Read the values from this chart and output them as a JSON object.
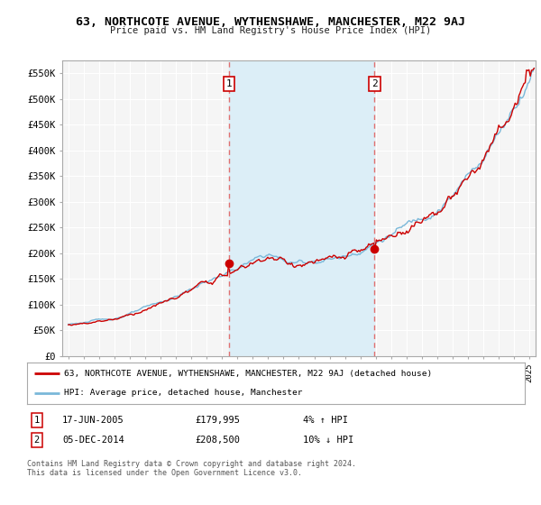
{
  "title": "63, NORTHCOTE AVENUE, WYTHENSHAWE, MANCHESTER, M22 9AJ",
  "subtitle": "Price paid vs. HM Land Registry's House Price Index (HPI)",
  "ylabel_ticks": [
    "£0",
    "£50K",
    "£100K",
    "£150K",
    "£200K",
    "£250K",
    "£300K",
    "£350K",
    "£400K",
    "£450K",
    "£500K",
    "£550K"
  ],
  "ylim": [
    0,
    575000
  ],
  "xlim_start": 1994.6,
  "xlim_end": 2025.4,
  "marker1_x": 2005.46,
  "marker1_y": 179995,
  "marker2_x": 2014.92,
  "marker2_y": 208500,
  "vline1_x": 2005.46,
  "vline2_x": 2014.92,
  "legend_line1": "63, NORTHCOTE AVENUE, WYTHENSHAWE, MANCHESTER, M22 9AJ (detached house)",
  "legend_line2": "HPI: Average price, detached house, Manchester",
  "ann1_date": "17-JUN-2005",
  "ann1_price": "£179,995",
  "ann1_hpi": "4% ↑ HPI",
  "ann2_date": "05-DEC-2014",
  "ann2_price": "£208,500",
  "ann2_hpi": "10% ↓ HPI",
  "footnote": "Contains HM Land Registry data © Crown copyright and database right 2024.\nThis data is licensed under the Open Government Licence v3.0.",
  "hpi_color": "#7ab8d9",
  "price_color": "#cc0000",
  "vline_color": "#e07070",
  "shade_color": "#dceef7",
  "background_plot": "#f5f5f5",
  "background_fig": "#ffffff",
  "grid_color": "#ffffff"
}
